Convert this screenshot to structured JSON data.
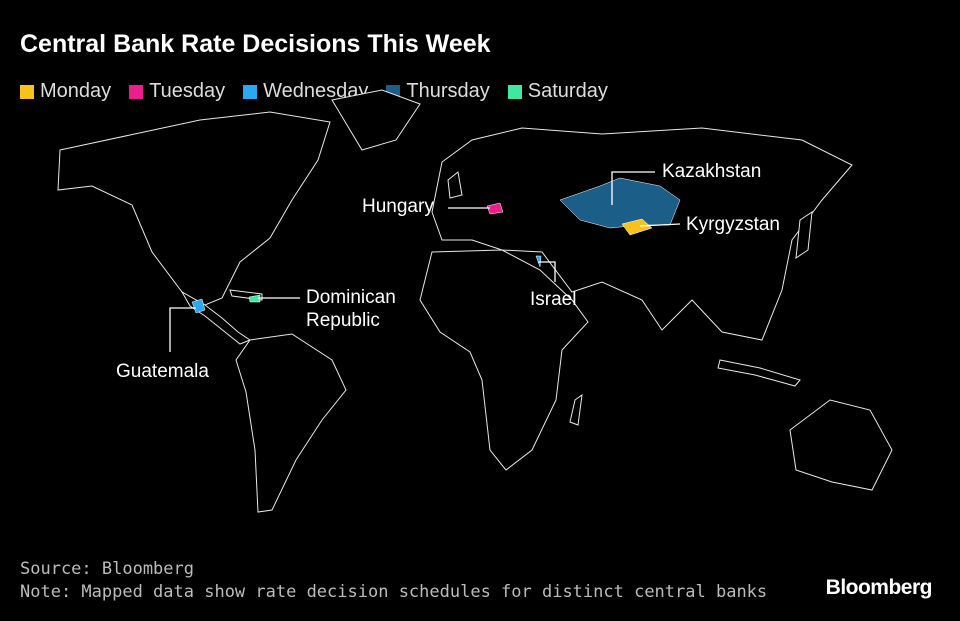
{
  "title": "Central Bank Rate Decisions This Week",
  "legend": [
    {
      "label": "Monday",
      "color": "#f7c21a",
      "countries": [
        "Kyrgyzstan"
      ]
    },
    {
      "label": "Tuesday",
      "color": "#ec1d8c",
      "countries": [
        "Hungary"
      ]
    },
    {
      "label": "Wednesday",
      "color": "#2ba8f2",
      "countries": [
        "Israel",
        "Guatemala"
      ]
    },
    {
      "label": "Thursday",
      "color": "#1b5f88",
      "countries": [
        "Kazakhstan"
      ]
    },
    {
      "label": "Saturday",
      "color": "#3fe8a0",
      "countries": [
        "Dominican Republic"
      ]
    }
  ],
  "footer": {
    "source": "Source: Bloomberg",
    "note": "Note: Mapped data show rate decision schedules for distinct central banks",
    "logo": "Bloomberg"
  }
}
